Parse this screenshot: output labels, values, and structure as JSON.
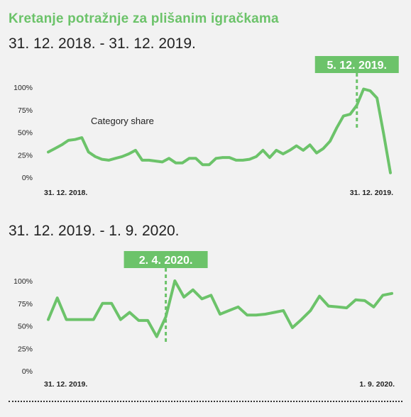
{
  "title": "Kretanje potražnje za plišanim igračkama",
  "colors": {
    "accent": "#6cc36a",
    "text": "#222222",
    "background": "#f2f2f2"
  },
  "chart_data": [
    {
      "type": "line",
      "subtitle": "31. 12. 2018. - 31. 12. 2019.",
      "legend": "Category share",
      "yticks": [
        "100%",
        "75%",
        "50%",
        "25%",
        "0%"
      ],
      "ylim": [
        0,
        100
      ],
      "x_start_label": "31. 12. 2018.",
      "x_end_label": "31. 12. 2019.",
      "callout": {
        "label": "5. 12. 2019.",
        "index": 46
      },
      "series": [
        {
          "values": [
            28,
            32,
            36,
            41,
            42,
            44,
            28,
            23,
            20,
            19,
            21,
            23,
            26,
            30,
            19,
            19,
            18,
            17,
            21,
            16,
            16,
            21,
            21,
            14,
            14,
            21,
            22,
            22,
            19,
            19,
            20,
            23,
            30,
            22,
            30,
            26,
            30,
            35,
            30,
            36,
            27,
            32,
            40,
            55,
            68,
            70,
            80,
            98,
            96,
            88,
            48,
            5
          ]
        }
      ]
    },
    {
      "type": "line",
      "subtitle": "31. 12. 2019. - 1. 9. 2020.",
      "yticks": [
        "100%",
        "75%",
        "50%",
        "25%",
        "0%"
      ],
      "ylim": [
        0,
        100
      ],
      "x_start_label": "31. 12. 2019.",
      "x_end_label": "1. 9. 2020.",
      "callout": {
        "label": "2. 4. 2020.",
        "index": 13
      },
      "series": [
        {
          "values": [
            57,
            81,
            57,
            57,
            57,
            57,
            75,
            75,
            57,
            65,
            56,
            56,
            38,
            60,
            100,
            82,
            90,
            80,
            84,
            63,
            67,
            71,
            62,
            62,
            63,
            65,
            67,
            48,
            57,
            67,
            83,
            72,
            71,
            70,
            79,
            78,
            71,
            84,
            86
          ]
        }
      ]
    }
  ]
}
